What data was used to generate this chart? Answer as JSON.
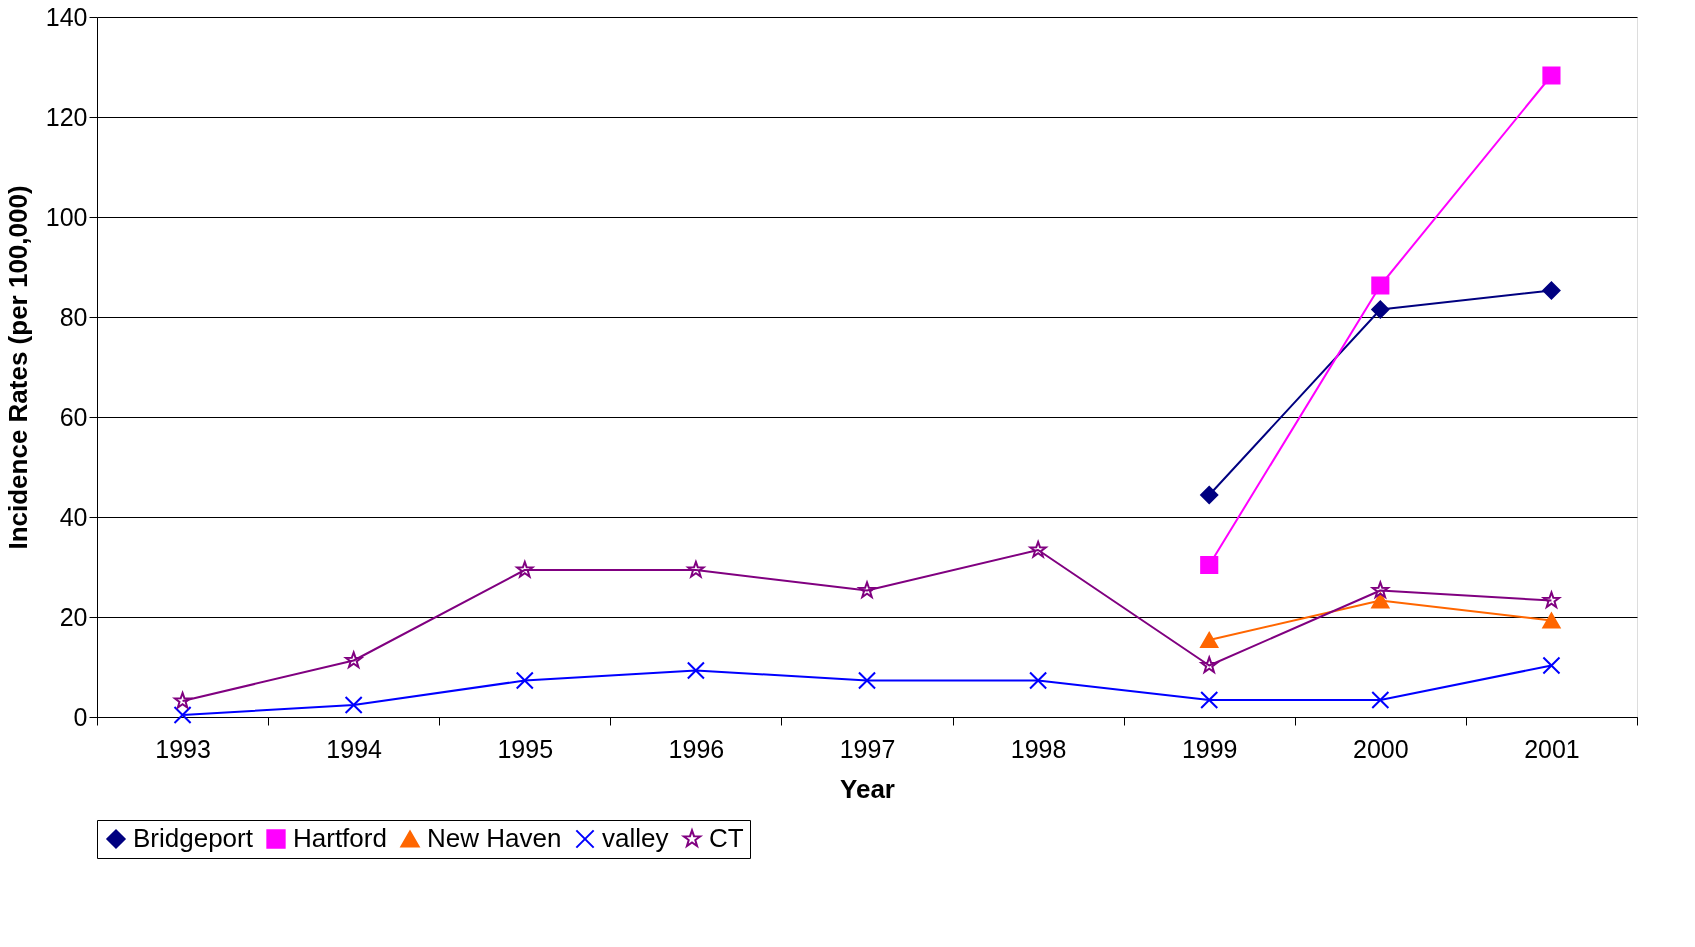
{
  "chart_data": {
    "type": "line",
    "xlabel": "Year",
    "ylabel": "Incidence Rates (per 100,000)",
    "categories": [
      "1993",
      "1994",
      "1995",
      "1996",
      "1997",
      "1998",
      "1999",
      "2000",
      "2001"
    ],
    "ylim": [
      0,
      140
    ],
    "yticks": [
      0,
      20,
      40,
      60,
      80,
      100,
      120,
      140
    ],
    "grid": "y",
    "legend": "bottom",
    "series": [
      {
        "name": "Bridgeport",
        "color": "#000080",
        "marker": "diamond",
        "values": [
          null,
          null,
          null,
          null,
          null,
          null,
          44.4,
          81.5,
          85.3
        ]
      },
      {
        "name": "Hartford",
        "color": "#ff00ff",
        "marker": "square",
        "values": [
          null,
          null,
          null,
          null,
          null,
          null,
          30.4,
          86.3,
          128.3
        ]
      },
      {
        "name": "New Haven",
        "color": "#ff6600",
        "marker": "triangle",
        "values": [
          null,
          null,
          null,
          null,
          null,
          null,
          15.4,
          23.3,
          19.3
        ]
      },
      {
        "name": "valley",
        "color": "#0000ff",
        "marker": "cross",
        "values": [
          0.4,
          2.4,
          7.3,
          9.3,
          7.3,
          7.3,
          3.4,
          3.4,
          10.3
        ]
      },
      {
        "name": "CT",
        "color": "#800080",
        "marker": "star",
        "values": [
          3.2,
          11.3,
          29.4,
          29.4,
          25.3,
          33.4,
          10.3,
          25.3,
          23.3
        ]
      }
    ]
  }
}
